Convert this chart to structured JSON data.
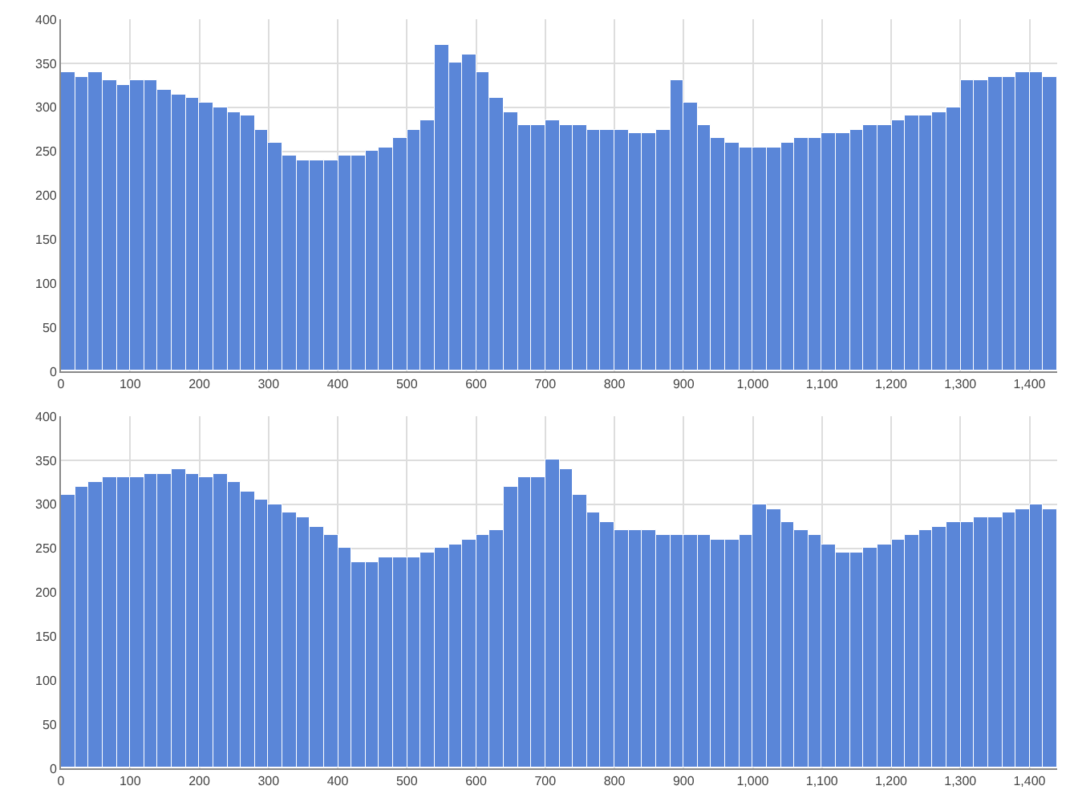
{
  "chart_data": [
    {
      "type": "histogram",
      "color": "#5a86d8",
      "grid": true,
      "bins": [
        0,
        20,
        40,
        60,
        80,
        100,
        120,
        140,
        160,
        180,
        200,
        220,
        240,
        260,
        280,
        300,
        320,
        340,
        360,
        380,
        400,
        420,
        440,
        460,
        480,
        500,
        520,
        540,
        560,
        580,
        600,
        620,
        640,
        660,
        680,
        700,
        720,
        740,
        760,
        780,
        800,
        820,
        840,
        860,
        880,
        900,
        920,
        940,
        960,
        980,
        1000,
        1020,
        1040,
        1060,
        1080,
        1100,
        1120,
        1140,
        1160,
        1180,
        1200,
        1220,
        1240,
        1260,
        1280,
        1300,
        1320,
        1340,
        1360,
        1380,
        1400,
        1420,
        1440
      ],
      "values": [
        340,
        335,
        340,
        330,
        325,
        330,
        330,
        320,
        315,
        310,
        305,
        300,
        295,
        290,
        275,
        260,
        245,
        240,
        240,
        240,
        245,
        245,
        250,
        255,
        265,
        275,
        285,
        370,
        350,
        360,
        340,
        310,
        295,
        280,
        280,
        285,
        280,
        280,
        275,
        275,
        275,
        270,
        270,
        275,
        330,
        305,
        280,
        265,
        260,
        255,
        255,
        255,
        260,
        265,
        265,
        270,
        270,
        275,
        280,
        280,
        285,
        290,
        290,
        295,
        300,
        330,
        330,
        335,
        335,
        340,
        340,
        335
      ],
      "xlim": [
        0,
        1440
      ],
      "ylim": [
        0,
        400
      ],
      "xticks": [
        0,
        100,
        200,
        300,
        400,
        500,
        600,
        700,
        800,
        900,
        {
          "value": 1000,
          "label": "1,000"
        },
        {
          "value": 1100,
          "label": "1,100"
        },
        {
          "value": 1200,
          "label": "1,200"
        },
        {
          "value": 1300,
          "label": "1,300"
        },
        {
          "value": 1400,
          "label": "1,400"
        }
      ],
      "yticks": [
        0,
        50,
        100,
        150,
        200,
        250,
        300,
        350,
        400
      ]
    },
    {
      "type": "histogram",
      "color": "#5a86d8",
      "grid": true,
      "bins": [
        0,
        20,
        40,
        60,
        80,
        100,
        120,
        140,
        160,
        180,
        200,
        220,
        240,
        260,
        280,
        300,
        320,
        340,
        360,
        380,
        400,
        420,
        440,
        460,
        480,
        500,
        520,
        540,
        560,
        580,
        600,
        620,
        640,
        660,
        680,
        700,
        720,
        740,
        760,
        780,
        800,
        820,
        840,
        860,
        880,
        900,
        920,
        940,
        960,
        980,
        1000,
        1020,
        1040,
        1060,
        1080,
        1100,
        1120,
        1140,
        1160,
        1180,
        1200,
        1220,
        1240,
        1260,
        1280,
        1300,
        1320,
        1340,
        1360,
        1380,
        1400,
        1420,
        1440
      ],
      "values": [
        310,
        320,
        325,
        330,
        330,
        330,
        335,
        335,
        340,
        335,
        330,
        335,
        325,
        315,
        305,
        300,
        290,
        285,
        275,
        265,
        250,
        235,
        235,
        240,
        240,
        240,
        245,
        250,
        255,
        260,
        265,
        270,
        320,
        330,
        330,
        350,
        340,
        310,
        290,
        280,
        270,
        270,
        270,
        265,
        265,
        265,
        265,
        260,
        260,
        265,
        300,
        295,
        280,
        270,
        265,
        255,
        245,
        245,
        250,
        255,
        260,
        265,
        270,
        275,
        280,
        280,
        285,
        285,
        290,
        295,
        300,
        295
      ],
      "xlim": [
        0,
        1440
      ],
      "ylim": [
        0,
        400
      ],
      "xticks": [
        0,
        100,
        200,
        300,
        400,
        500,
        600,
        700,
        800,
        900,
        {
          "value": 1000,
          "label": "1,000"
        },
        {
          "value": 1100,
          "label": "1,100"
        },
        {
          "value": 1200,
          "label": "1,200"
        },
        {
          "value": 1300,
          "label": "1,300"
        },
        {
          "value": 1400,
          "label": "1,400"
        }
      ],
      "yticks": [
        0,
        50,
        100,
        150,
        200,
        250,
        300,
        350,
        400
      ]
    }
  ]
}
